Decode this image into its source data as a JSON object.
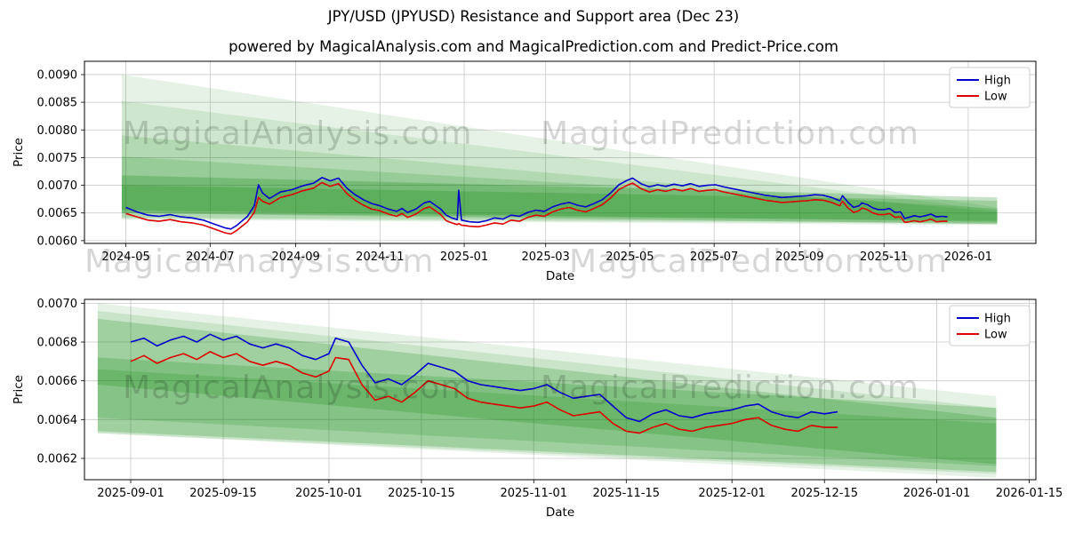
{
  "page": {
    "title": "JPY/USD (JPYUSD) Resistance and Support area (Dec 23)",
    "subtitle": "powered by MagicalAnalysis.com and MagicalPrediction.com and Predict-Price.com"
  },
  "watermarks": {
    "analysis": "MagicalAnalysis.com",
    "prediction": "MagicalPrediction.com"
  },
  "colors": {
    "high": "#0000cc",
    "low": "#dd0000",
    "band": "#008000",
    "grid": "#c8c8c8",
    "spine": "#000000",
    "legend_border": "#cccccc"
  },
  "chart_data": [
    {
      "type": "line",
      "title": "",
      "xlabel": "Date",
      "ylabel": "Price",
      "grid": true,
      "legend_position": "upper right",
      "x_range": [
        "2024-04-01",
        "2026-02-19"
      ],
      "y_range": [
        0.00595,
        0.00924
      ],
      "x_ticks": [
        {
          "date": "2024-05-01",
          "label": "2024-05"
        },
        {
          "date": "2024-07-01",
          "label": "2024-07"
        },
        {
          "date": "2024-09-01",
          "label": "2024-09"
        },
        {
          "date": "2024-11-01",
          "label": "2024-11"
        },
        {
          "date": "2025-01-01",
          "label": "2025-01"
        },
        {
          "date": "2025-03-01",
          "label": "2025-03"
        },
        {
          "date": "2025-05-01",
          "label": "2025-05"
        },
        {
          "date": "2025-07-01",
          "label": "2025-07"
        },
        {
          "date": "2025-09-01",
          "label": "2025-09"
        },
        {
          "date": "2025-11-01",
          "label": "2025-11"
        },
        {
          "date": "2026-01-01",
          "label": "2026-01"
        }
      ],
      "y_ticks": [
        {
          "value": 0.006,
          "label": "0.0060"
        },
        {
          "value": 0.0065,
          "label": "0.0065"
        },
        {
          "value": 0.007,
          "label": "0.0070"
        },
        {
          "value": 0.0075,
          "label": "0.0075"
        },
        {
          "value": 0.008,
          "label": "0.0080"
        },
        {
          "value": 0.0085,
          "label": "0.0085"
        },
        {
          "value": 0.009,
          "label": "0.0090"
        }
      ],
      "x": [
        "2024-05-01",
        "2024-05-09",
        "2024-05-17",
        "2024-05-25",
        "2024-06-02",
        "2024-06-10",
        "2024-06-18",
        "2024-06-26",
        "2024-07-04",
        "2024-07-12",
        "2024-07-16",
        "2024-07-20",
        "2024-07-28",
        "2024-08-02",
        "2024-08-05",
        "2024-08-08",
        "2024-08-13",
        "2024-08-21",
        "2024-08-29",
        "2024-09-06",
        "2024-09-14",
        "2024-09-20",
        "2024-09-26",
        "2024-10-02",
        "2024-10-08",
        "2024-10-14",
        "2024-10-20",
        "2024-10-26",
        "2024-11-01",
        "2024-11-07",
        "2024-11-13",
        "2024-11-17",
        "2024-11-21",
        "2024-11-27",
        "2024-12-03",
        "2024-12-07",
        "2024-12-11",
        "2024-12-15",
        "2024-12-19",
        "2024-12-23",
        "2024-12-27",
        "2024-12-28",
        "2024-12-30",
        "2025-01-05",
        "2025-01-11",
        "2025-01-17",
        "2025-01-23",
        "2025-01-29",
        "2025-02-04",
        "2025-02-10",
        "2025-02-16",
        "2025-02-22",
        "2025-02-28",
        "2025-03-06",
        "2025-03-12",
        "2025-03-18",
        "2025-03-24",
        "2025-03-30",
        "2025-04-05",
        "2025-04-11",
        "2025-04-17",
        "2025-04-23",
        "2025-04-29",
        "2025-05-03",
        "2025-05-09",
        "2025-05-15",
        "2025-05-21",
        "2025-05-27",
        "2025-06-02",
        "2025-06-08",
        "2025-06-14",
        "2025-06-20",
        "2025-06-26",
        "2025-07-02",
        "2025-07-08",
        "2025-07-14",
        "2025-07-20",
        "2025-07-26",
        "2025-08-01",
        "2025-08-07",
        "2025-08-13",
        "2025-08-19",
        "2025-08-25",
        "2025-08-31",
        "2025-09-06",
        "2025-09-12",
        "2025-09-18",
        "2025-09-24",
        "2025-09-30",
        "2025-10-02",
        "2025-10-06",
        "2025-10-10",
        "2025-10-14",
        "2025-10-16",
        "2025-10-20",
        "2025-10-24",
        "2025-10-28",
        "2025-11-01",
        "2025-11-05",
        "2025-11-09",
        "2025-11-13",
        "2025-11-16",
        "2025-11-19",
        "2025-11-23",
        "2025-11-27",
        "2025-12-01",
        "2025-12-05",
        "2025-12-09",
        "2025-12-13",
        "2025-12-17"
      ],
      "series": [
        {
          "name": "High",
          "color": "#0000cc",
          "y": [
            0.0066,
            0.00652,
            0.00646,
            0.00644,
            0.00647,
            0.00643,
            0.00641,
            0.00637,
            0.0063,
            0.00623,
            0.00621,
            0.00627,
            0.00644,
            0.00663,
            0.00701,
            0.00686,
            0.00676,
            0.00688,
            0.00692,
            0.00699,
            0.00704,
            0.00714,
            0.00708,
            0.00713,
            0.00695,
            0.00683,
            0.00674,
            0.00667,
            0.00663,
            0.00657,
            0.00653,
            0.00658,
            0.00651,
            0.00657,
            0.00668,
            0.00671,
            0.00664,
            0.00657,
            0.00646,
            0.00641,
            0.00638,
            0.00691,
            0.00637,
            0.00634,
            0.00633,
            0.00636,
            0.00641,
            0.00639,
            0.00646,
            0.00644,
            0.00651,
            0.00655,
            0.00653,
            0.00661,
            0.00666,
            0.00669,
            0.00664,
            0.00661,
            0.00667,
            0.00674,
            0.00686,
            0.00701,
            0.00709,
            0.00713,
            0.00703,
            0.00697,
            0.00701,
            0.00698,
            0.00702,
            0.00699,
            0.00703,
            0.00698,
            0.007,
            0.00701,
            0.00697,
            0.00694,
            0.00691,
            0.00688,
            0.00685,
            0.00682,
            0.0068,
            0.00678,
            0.00679,
            0.0068,
            0.00681,
            0.00683,
            0.00682,
            0.00678,
            0.00672,
            0.00681,
            0.00669,
            0.0066,
            0.00663,
            0.00668,
            0.00665,
            0.00659,
            0.00656,
            0.00656,
            0.00658,
            0.00651,
            0.00652,
            0.0064,
            0.00642,
            0.00645,
            0.00643,
            0.00645,
            0.00648,
            0.00643,
            0.00644,
            0.00643
          ]
        },
        {
          "name": "Low",
          "color": "#dd0000",
          "y": [
            0.00649,
            0.00643,
            0.00637,
            0.00635,
            0.00638,
            0.00634,
            0.00632,
            0.00628,
            0.00621,
            0.00614,
            0.00612,
            0.00618,
            0.00634,
            0.00651,
            0.00678,
            0.00671,
            0.00666,
            0.00678,
            0.00683,
            0.0069,
            0.00695,
            0.00705,
            0.00698,
            0.00703,
            0.00685,
            0.00673,
            0.00664,
            0.00657,
            0.00654,
            0.00648,
            0.00644,
            0.00649,
            0.00642,
            0.00648,
            0.00658,
            0.00661,
            0.00654,
            0.00647,
            0.00636,
            0.00632,
            0.00629,
            0.00631,
            0.00628,
            0.00626,
            0.00625,
            0.00628,
            0.00632,
            0.0063,
            0.00637,
            0.00635,
            0.00642,
            0.00646,
            0.00644,
            0.00652,
            0.00657,
            0.0066,
            0.00655,
            0.00652,
            0.00658,
            0.00665,
            0.00677,
            0.00692,
            0.007,
            0.00704,
            0.00694,
            0.00688,
            0.00692,
            0.00689,
            0.00693,
            0.0069,
            0.00694,
            0.00689,
            0.00691,
            0.00692,
            0.00688,
            0.00685,
            0.00682,
            0.00679,
            0.00676,
            0.00673,
            0.00671,
            0.00669,
            0.0067,
            0.00671,
            0.00672,
            0.00674,
            0.00673,
            0.00669,
            0.00663,
            0.00671,
            0.00659,
            0.00651,
            0.00654,
            0.00659,
            0.00656,
            0.0065,
            0.00647,
            0.00647,
            0.00649,
            0.00642,
            0.00643,
            0.00633,
            0.00634,
            0.00636,
            0.00634,
            0.00636,
            0.00639,
            0.00634,
            0.00635,
            0.00635
          ]
        }
      ],
      "bands": [
        {
          "x0": "2024-04-28",
          "x1": "2026-01-22",
          "top0": 0.009,
          "bot0": 0.00638,
          "top1": 0.0066,
          "bot1": 0.00628,
          "opacity": 0.1
        },
        {
          "x0": "2024-04-28",
          "x1": "2026-01-22",
          "top0": 0.00852,
          "bot0": 0.0064,
          "top1": 0.00655,
          "bot1": 0.0063,
          "opacity": 0.1
        },
        {
          "x0": "2024-04-28",
          "x1": "2026-01-22",
          "top0": 0.0079,
          "bot0": 0.00642,
          "top1": 0.00652,
          "bot1": 0.00632,
          "opacity": 0.13
        },
        {
          "x0": "2024-04-28",
          "x1": "2026-01-22",
          "top0": 0.00752,
          "bot0": 0.0065,
          "top1": 0.00658,
          "bot1": 0.00636,
          "opacity": 0.15
        },
        {
          "x0": "2024-04-28",
          "x1": "2026-01-22",
          "top0": 0.00718,
          "bot0": 0.0065,
          "top1": 0.00678,
          "bot1": 0.0063,
          "opacity": 0.22
        },
        {
          "x0": "2024-04-28",
          "x1": "2026-01-22",
          "top0": 0.007,
          "bot0": 0.00655,
          "top1": 0.00672,
          "bot1": 0.00634,
          "opacity": 0.2
        }
      ]
    },
    {
      "type": "line",
      "title": "",
      "xlabel": "Date",
      "ylabel": "Price",
      "grid": true,
      "legend_position": "upper right",
      "x_range": [
        "2025-08-25",
        "2026-01-16"
      ],
      "y_range": [
        0.00609,
        0.00702
      ],
      "x_ticks": [
        {
          "date": "2025-09-01",
          "label": "2025-09-01"
        },
        {
          "date": "2025-09-15",
          "label": "2025-09-15"
        },
        {
          "date": "2025-10-01",
          "label": "2025-10-01"
        },
        {
          "date": "2025-10-15",
          "label": "2025-10-15"
        },
        {
          "date": "2025-11-01",
          "label": "2025-11-01"
        },
        {
          "date": "2025-11-15",
          "label": "2025-11-15"
        },
        {
          "date": "2025-12-01",
          "label": "2025-12-01"
        },
        {
          "date": "2025-12-15",
          "label": "2025-12-15"
        },
        {
          "date": "2026-01-01",
          "label": "2026-01-01"
        },
        {
          "date": "2026-01-15",
          "label": "2026-01-15"
        }
      ],
      "y_ticks": [
        {
          "value": 0.0062,
          "label": "0.0062"
        },
        {
          "value": 0.0064,
          "label": "0.0064"
        },
        {
          "value": 0.0066,
          "label": "0.0066"
        },
        {
          "value": 0.0068,
          "label": "0.0068"
        },
        {
          "value": 0.007,
          "label": "0.0070"
        }
      ],
      "x": [
        "2025-09-01",
        "2025-09-03",
        "2025-09-05",
        "2025-09-07",
        "2025-09-09",
        "2025-09-11",
        "2025-09-13",
        "2025-09-15",
        "2025-09-17",
        "2025-09-19",
        "2025-09-21",
        "2025-09-23",
        "2025-09-25",
        "2025-09-27",
        "2025-09-29",
        "2025-10-01",
        "2025-10-02",
        "2025-10-04",
        "2025-10-06",
        "2025-10-08",
        "2025-10-10",
        "2025-10-12",
        "2025-10-14",
        "2025-10-16",
        "2025-10-18",
        "2025-10-20",
        "2025-10-22",
        "2025-10-24",
        "2025-10-26",
        "2025-10-28",
        "2025-10-30",
        "2025-11-01",
        "2025-11-03",
        "2025-11-05",
        "2025-11-07",
        "2025-11-09",
        "2025-11-11",
        "2025-11-13",
        "2025-11-15",
        "2025-11-17",
        "2025-11-19",
        "2025-11-21",
        "2025-11-23",
        "2025-11-25",
        "2025-11-27",
        "2025-11-29",
        "2025-12-01",
        "2025-12-03",
        "2025-12-05",
        "2025-12-07",
        "2025-12-09",
        "2025-12-11",
        "2025-12-13",
        "2025-12-15",
        "2025-12-17"
      ],
      "series": [
        {
          "name": "High",
          "color": "#0000cc",
          "y": [
            0.0068,
            0.00682,
            0.00678,
            0.00681,
            0.00683,
            0.0068,
            0.00684,
            0.00681,
            0.00683,
            0.00679,
            0.00677,
            0.00679,
            0.00677,
            0.00673,
            0.00671,
            0.00674,
            0.00682,
            0.0068,
            0.00668,
            0.00659,
            0.00661,
            0.00658,
            0.00663,
            0.00669,
            0.00667,
            0.00665,
            0.0066,
            0.00658,
            0.00657,
            0.00656,
            0.00655,
            0.00656,
            0.00658,
            0.00654,
            0.00651,
            0.00652,
            0.00653,
            0.00647,
            0.00641,
            0.00639,
            0.00643,
            0.00645,
            0.00642,
            0.00641,
            0.00643,
            0.00644,
            0.00645,
            0.00647,
            0.00648,
            0.00644,
            0.00642,
            0.00641,
            0.00644,
            0.00643,
            0.00644
          ]
        },
        {
          "name": "Low",
          "color": "#dd0000",
          "y": [
            0.0067,
            0.00673,
            0.00669,
            0.00672,
            0.00674,
            0.00671,
            0.00675,
            0.00672,
            0.00674,
            0.0067,
            0.00668,
            0.0067,
            0.00668,
            0.00664,
            0.00662,
            0.00665,
            0.00672,
            0.00671,
            0.00658,
            0.0065,
            0.00652,
            0.00649,
            0.00654,
            0.0066,
            0.00658,
            0.00656,
            0.00651,
            0.00649,
            0.00648,
            0.00647,
            0.00646,
            0.00647,
            0.00649,
            0.00645,
            0.00642,
            0.00643,
            0.00644,
            0.00638,
            0.00634,
            0.00633,
            0.00636,
            0.00638,
            0.00635,
            0.00634,
            0.00636,
            0.00637,
            0.00638,
            0.0064,
            0.00641,
            0.00637,
            0.00635,
            0.00634,
            0.00637,
            0.00636,
            0.00636
          ]
        }
      ],
      "bands": [
        {
          "x0": "2025-08-27",
          "x1": "2026-01-10",
          "top0": 0.007,
          "bot0": 0.00633,
          "top1": 0.00652,
          "bot1": 0.0061,
          "opacity": 0.1
        },
        {
          "x0": "2025-08-27",
          "x1": "2026-01-10",
          "top0": 0.00696,
          "bot0": 0.00633,
          "top1": 0.00646,
          "bot1": 0.00612,
          "opacity": 0.12
        },
        {
          "x0": "2025-08-27",
          "x1": "2026-01-10",
          "top0": 0.00692,
          "bot0": 0.00658,
          "top1": 0.00641,
          "bot1": 0.00617,
          "opacity": 0.2
        },
        {
          "x0": "2025-08-27",
          "x1": "2026-01-10",
          "top0": 0.00672,
          "bot0": 0.00634,
          "top1": 0.00646,
          "bot1": 0.00613,
          "opacity": 0.2
        },
        {
          "x0": "2025-08-27",
          "x1": "2026-01-10",
          "top0": 0.00666,
          "bot0": 0.00641,
          "top1": 0.00638,
          "bot1": 0.00616,
          "opacity": 0.16
        }
      ]
    }
  ]
}
